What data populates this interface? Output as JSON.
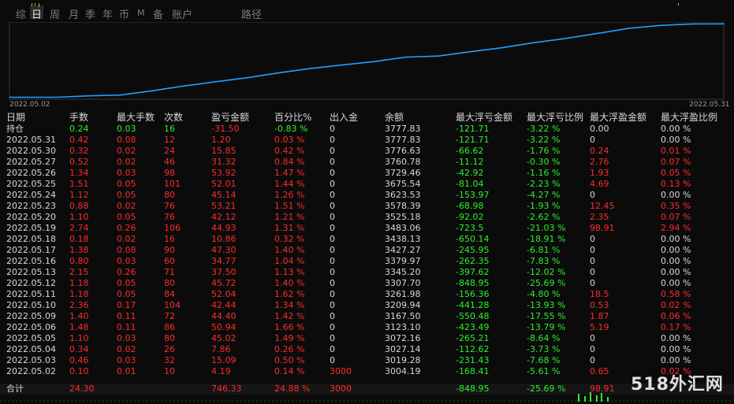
{
  "tabs": [
    {
      "label": "综",
      "active": false
    },
    {
      "label": "日",
      "active": true
    },
    {
      "label": "周",
      "active": false
    },
    {
      "label": "月",
      "active": false
    },
    {
      "label": "季",
      "active": false
    },
    {
      "label": "年",
      "active": false
    },
    {
      "label": "币",
      "active": false
    },
    {
      "label": "M",
      "active": false
    },
    {
      "label": "备",
      "active": false
    },
    {
      "label": "账户",
      "active": false
    },
    {
      "label": "路径",
      "active": false
    }
  ],
  "chart": {
    "start_date": "2022.05.02",
    "end_date": "2022.05.31",
    "line_color": "#1ea0ff"
  },
  "chart_data": {
    "type": "line",
    "x": [
      "2022.05.02",
      "2022.05.03",
      "2022.05.04",
      "2022.05.05",
      "2022.05.06",
      "2022.05.09",
      "2022.05.10",
      "2022.05.11",
      "2022.05.12",
      "2022.05.13",
      "2022.05.16",
      "2022.05.17",
      "2022.05.18",
      "2022.05.19",
      "2022.05.20",
      "2022.05.23",
      "2022.05.24",
      "2022.05.25",
      "2022.05.26",
      "2022.05.27",
      "2022.05.30",
      "2022.05.31"
    ],
    "series": [
      {
        "values": [
          3004.19,
          3019.28,
          3027.14,
          3072.16,
          3123.1,
          3167.5,
          3209.94,
          3261.98,
          3307.7,
          3345.2,
          3379.97,
          3427.27,
          3438.13,
          3483.06,
          3525.18,
          3578.39,
          3623.53,
          3675.54,
          3729.46,
          3760.78,
          3776.63,
          3777.83
        ]
      }
    ],
    "xlabel": "",
    "ylabel": ""
  },
  "table": {
    "headers": [
      "日期",
      "手数",
      "最大手数",
      "次数",
      "盈亏金额",
      "百分比%",
      "出入金",
      "余额",
      "最大浮亏金额",
      "最大浮亏比例",
      "最大浮盈金额",
      "最大浮盈比例"
    ],
    "position_row": {
      "date": "持仓",
      "lots": "0.24",
      "max_lots": "0.03",
      "count": "16",
      "pnl": "-31.50",
      "pct": "-0.83 %",
      "deposit": "0",
      "balance": "3777.83",
      "max_float_loss": "-121.71",
      "max_float_loss_pct": "-3.22 %",
      "max_float_profit": "0.00",
      "max_float_profit_pct": "0.00 %"
    },
    "rows": [
      {
        "date": "2022.05.31",
        "lots": "0.42",
        "max_lots": "0.08",
        "count": "12",
        "pnl": "1.20",
        "pct": "0.03 %",
        "deposit": "0",
        "balance": "3777.83",
        "max_float_loss": "-121.71",
        "max_float_loss_pct": "-3.22 %",
        "max_float_profit": "0",
        "max_float_profit_pct": "0.00 %"
      },
      {
        "date": "2022.05.30",
        "lots": "0.32",
        "max_lots": "0.02",
        "count": "24",
        "pnl": "15.85",
        "pct": "0.42 %",
        "deposit": "0",
        "balance": "3776.63",
        "max_float_loss": "-66.62",
        "max_float_loss_pct": "-1.76 %",
        "max_float_profit": "0.24",
        "max_float_profit_pct": "0.01 %"
      },
      {
        "date": "2022.05.27",
        "lots": "0.52",
        "max_lots": "0.02",
        "count": "46",
        "pnl": "31.32",
        "pct": "0.84 %",
        "deposit": "0",
        "balance": "3760.78",
        "max_float_loss": "-11.12",
        "max_float_loss_pct": "-0.30 %",
        "max_float_profit": "2.76",
        "max_float_profit_pct": "0.07 %"
      },
      {
        "date": "2022.05.26",
        "lots": "1.34",
        "max_lots": "0.03",
        "count": "98",
        "pnl": "53.92",
        "pct": "1.47 %",
        "deposit": "0",
        "balance": "3729.46",
        "max_float_loss": "-42.92",
        "max_float_loss_pct": "-1.16 %",
        "max_float_profit": "1.93",
        "max_float_profit_pct": "0.05 %"
      },
      {
        "date": "2022.05.25",
        "lots": "1.51",
        "max_lots": "0.05",
        "count": "101",
        "pnl": "52.01",
        "pct": "1.44 %",
        "deposit": "0",
        "balance": "3675.54",
        "max_float_loss": "-81.04",
        "max_float_loss_pct": "-2.23 %",
        "max_float_profit": "4.69",
        "max_float_profit_pct": "0.13 %"
      },
      {
        "date": "2022.05.24",
        "lots": "1.12",
        "max_lots": "0.05",
        "count": "80",
        "pnl": "45.14",
        "pct": "1.26 %",
        "deposit": "0",
        "balance": "3623.53",
        "max_float_loss": "-153.97",
        "max_float_loss_pct": "-4.27 %",
        "max_float_profit": "0",
        "max_float_profit_pct": "0.00 %"
      },
      {
        "date": "2022.05.23",
        "lots": "0.88",
        "max_lots": "0.02",
        "count": "76",
        "pnl": "53.21",
        "pct": "1.51 %",
        "deposit": "0",
        "balance": "3578.39",
        "max_float_loss": "-68.98",
        "max_float_loss_pct": "-1.93 %",
        "max_float_profit": "12.45",
        "max_float_profit_pct": "0.35 %"
      },
      {
        "date": "2022.05.20",
        "lots": "1.10",
        "max_lots": "0.05",
        "count": "76",
        "pnl": "42.12",
        "pct": "1.21 %",
        "deposit": "0",
        "balance": "3525.18",
        "max_float_loss": "-92.02",
        "max_float_loss_pct": "-2.62 %",
        "max_float_profit": "2.35",
        "max_float_profit_pct": "0.07 %"
      },
      {
        "date": "2022.05.19",
        "lots": "2.74",
        "max_lots": "0.26",
        "count": "106",
        "pnl": "44.93",
        "pct": "1.31 %",
        "deposit": "0",
        "balance": "3483.06",
        "max_float_loss": "-723.5",
        "max_float_loss_pct": "-21.03 %",
        "max_float_profit": "98.91",
        "max_float_profit_pct": "2.94 %"
      },
      {
        "date": "2022.05.18",
        "lots": "0.18",
        "max_lots": "0.02",
        "count": "16",
        "pnl": "10.86",
        "pct": "0.32 %",
        "deposit": "0",
        "balance": "3438.13",
        "max_float_loss": "-650.14",
        "max_float_loss_pct": "-18.91 %",
        "max_float_profit": "0",
        "max_float_profit_pct": "0.00 %"
      },
      {
        "date": "2022.05.17",
        "lots": "1.38",
        "max_lots": "0.08",
        "count": "90",
        "pnl": "47.30",
        "pct": "1.40 %",
        "deposit": "0",
        "balance": "3427.27",
        "max_float_loss": "-245.95",
        "max_float_loss_pct": "-6.81 %",
        "max_float_profit": "0",
        "max_float_profit_pct": "0.00 %"
      },
      {
        "date": "2022.05.16",
        "lots": "0.80",
        "max_lots": "0.03",
        "count": "60",
        "pnl": "34.77",
        "pct": "1.04 %",
        "deposit": "0",
        "balance": "3379.97",
        "max_float_loss": "-262.35",
        "max_float_loss_pct": "-7.83 %",
        "max_float_profit": "0",
        "max_float_profit_pct": "0.00 %"
      },
      {
        "date": "2022.05.13",
        "lots": "2.15",
        "max_lots": "0.26",
        "count": "71",
        "pnl": "37.50",
        "pct": "1.13 %",
        "deposit": "0",
        "balance": "3345.20",
        "max_float_loss": "-397.62",
        "max_float_loss_pct": "-12.02 %",
        "max_float_profit": "0",
        "max_float_profit_pct": "0.00 %"
      },
      {
        "date": "2022.05.12",
        "lots": "1.18",
        "max_lots": "0.05",
        "count": "80",
        "pnl": "45.72",
        "pct": "1.40 %",
        "deposit": "0",
        "balance": "3307.70",
        "max_float_loss": "-848.95",
        "max_float_loss_pct": "-25.69 %",
        "max_float_profit": "0",
        "max_float_profit_pct": "0.00 %"
      },
      {
        "date": "2022.05.11",
        "lots": "1.18",
        "max_lots": "0.05",
        "count": "84",
        "pnl": "52.04",
        "pct": "1.62 %",
        "deposit": "0",
        "balance": "3261.98",
        "max_float_loss": "-156.36",
        "max_float_loss_pct": "-4.80 %",
        "max_float_profit": "18.5",
        "max_float_profit_pct": "0.58 %"
      },
      {
        "date": "2022.05.10",
        "lots": "2.36",
        "max_lots": "0.17",
        "count": "104",
        "pnl": "42.44",
        "pct": "1.34 %",
        "deposit": "0",
        "balance": "3209.94",
        "max_float_loss": "-441.28",
        "max_float_loss_pct": "-13.93 %",
        "max_float_profit": "0.53",
        "max_float_profit_pct": "0.02 %"
      },
      {
        "date": "2022.05.09",
        "lots": "1.40",
        "max_lots": "0.11",
        "count": "72",
        "pnl": "44.40",
        "pct": "1.42 %",
        "deposit": "0",
        "balance": "3167.50",
        "max_float_loss": "-550.48",
        "max_float_loss_pct": "-17.55 %",
        "max_float_profit": "1.87",
        "max_float_profit_pct": "0.06 %"
      },
      {
        "date": "2022.05.06",
        "lots": "1.48",
        "max_lots": "0.11",
        "count": "86",
        "pnl": "50.94",
        "pct": "1.66 %",
        "deposit": "0",
        "balance": "3123.10",
        "max_float_loss": "-423.49",
        "max_float_loss_pct": "-13.79 %",
        "max_float_profit": "5.19",
        "max_float_profit_pct": "0.17 %"
      },
      {
        "date": "2022.05.05",
        "lots": "1.10",
        "max_lots": "0.03",
        "count": "80",
        "pnl": "45.02",
        "pct": "1.49 %",
        "deposit": "0",
        "balance": "3072.16",
        "max_float_loss": "-265.21",
        "max_float_loss_pct": "-8.64 %",
        "max_float_profit": "0",
        "max_float_profit_pct": "0.00 %"
      },
      {
        "date": "2022.05.04",
        "lots": "0.34",
        "max_lots": "0.02",
        "count": "26",
        "pnl": "7.86",
        "pct": "0.26 %",
        "deposit": "0",
        "balance": "3027.14",
        "max_float_loss": "-112.62",
        "max_float_loss_pct": "-3.73 %",
        "max_float_profit": "0",
        "max_float_profit_pct": "0.00 %"
      },
      {
        "date": "2022.05.03",
        "lots": "0.46",
        "max_lots": "0.03",
        "count": "32",
        "pnl": "15.09",
        "pct": "0.50 %",
        "deposit": "0",
        "balance": "3019.28",
        "max_float_loss": "-231.43",
        "max_float_loss_pct": "-7.68 %",
        "max_float_profit": "0",
        "max_float_profit_pct": "0.00 %"
      },
      {
        "date": "2022.05.02",
        "lots": "0.10",
        "max_lots": "0.01",
        "count": "10",
        "pnl": "4.19",
        "pct": "0.14 %",
        "deposit": "3000",
        "balance": "3004.19",
        "max_float_loss": "-168.41",
        "max_float_loss_pct": "-5.61 %",
        "max_float_profit": "0.65",
        "max_float_profit_pct": "0.02 %"
      }
    ],
    "total_row": {
      "date": "合计",
      "lots": "24.30",
      "max_lots": "",
      "count": "",
      "pnl": "746.33",
      "pct": "24.88 %",
      "deposit": "3000",
      "balance": "",
      "max_float_loss": "-848.95",
      "max_float_loss_pct": "-25.69 %",
      "max_float_profit": "98.91",
      "max_float_profit_pct": ""
    }
  },
  "watermark": "518外汇网",
  "colors": {
    "positive": "#ff2a2a",
    "negative": "#2cf02c",
    "neutral": "#d8d8d8",
    "background": "#0b0b0b",
    "line": "#1ea0ff"
  }
}
